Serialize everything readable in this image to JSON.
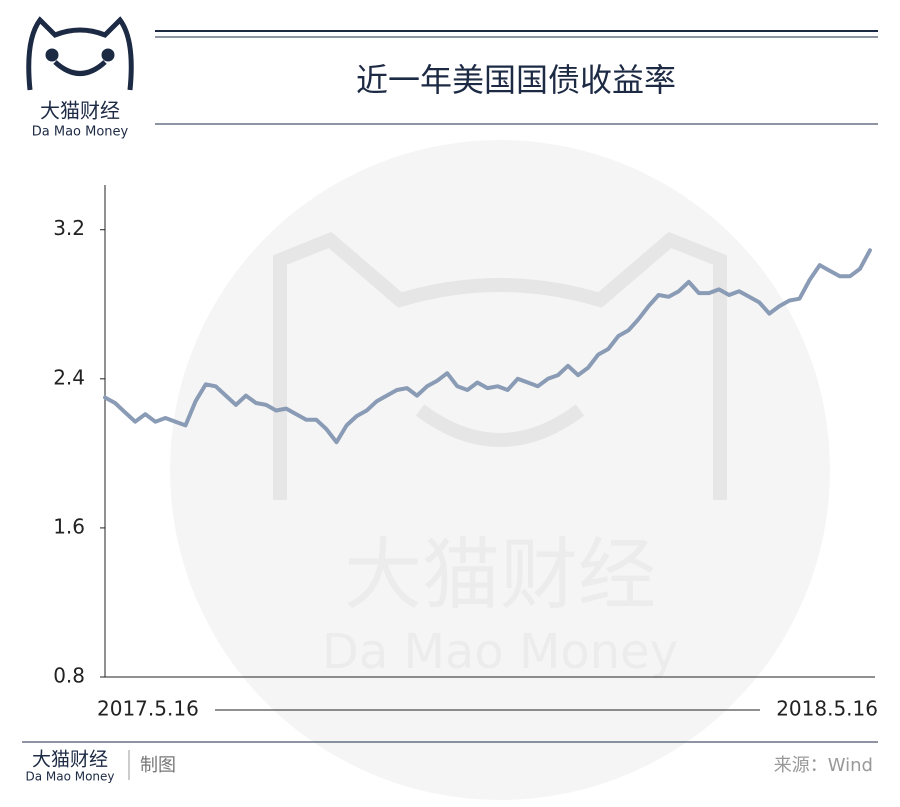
{
  "header": {
    "logo_name": "大猫财经",
    "logo_sub": "Da Mao Money"
  },
  "watermark": {
    "name": "大猫财经",
    "sub": "Da Mao Money"
  },
  "footer": {
    "logo_name": "大猫财经",
    "logo_sub": "Da Mao Money",
    "credit": "制图",
    "source": "来源：Wind"
  },
  "chart_data": {
    "type": "line",
    "title": "近一年美国国债收益率",
    "categories": [
      "2017.5.16",
      null,
      null,
      null,
      null,
      null,
      null,
      null,
      null,
      null,
      null,
      null,
      null,
      null,
      null,
      null,
      null,
      null,
      null,
      null,
      null,
      null,
      null,
      null,
      null,
      null,
      null,
      null,
      null,
      null,
      null,
      null,
      null,
      null,
      null,
      null,
      null,
      null,
      null,
      null,
      null,
      null,
      null,
      null,
      null,
      null,
      null,
      null,
      null,
      null,
      null,
      null,
      null,
      null,
      null,
      null,
      null,
      null,
      null,
      null,
      null,
      null,
      null,
      null,
      null,
      null,
      null,
      null,
      null,
      null,
      null,
      null,
      null,
      null,
      null,
      null,
      "2018.5.16"
    ],
    "series": [
      {
        "name": "近一年美国国债收益率",
        "color": "#8a9bb5",
        "values": [
          2.3,
          2.27,
          2.22,
          2.17,
          2.21,
          2.17,
          2.19,
          2.17,
          2.15,
          2.28,
          2.37,
          2.36,
          2.31,
          2.26,
          2.31,
          2.27,
          2.26,
          2.23,
          2.24,
          2.21,
          2.18,
          2.18,
          2.13,
          2.06,
          2.15,
          2.2,
          2.23,
          2.28,
          2.31,
          2.34,
          2.35,
          2.31,
          2.36,
          2.39,
          2.43,
          2.36,
          2.34,
          2.38,
          2.35,
          2.36,
          2.34,
          2.4,
          2.38,
          2.36,
          2.4,
          2.42,
          2.47,
          2.42,
          2.46,
          2.53,
          2.56,
          2.63,
          2.66,
          2.72,
          2.79,
          2.85,
          2.84,
          2.87,
          2.92,
          2.86,
          2.86,
          2.88,
          2.85,
          2.87,
          2.84,
          2.81,
          2.75,
          2.79,
          2.82,
          2.83,
          2.93,
          3.01,
          2.98,
          2.95,
          2.95,
          2.99,
          3.09
        ]
      }
    ],
    "ylim": [
      0.8,
      3.44
    ],
    "yticks": [
      0.8,
      1.6,
      2.4,
      3.2
    ],
    "grid": false
  }
}
